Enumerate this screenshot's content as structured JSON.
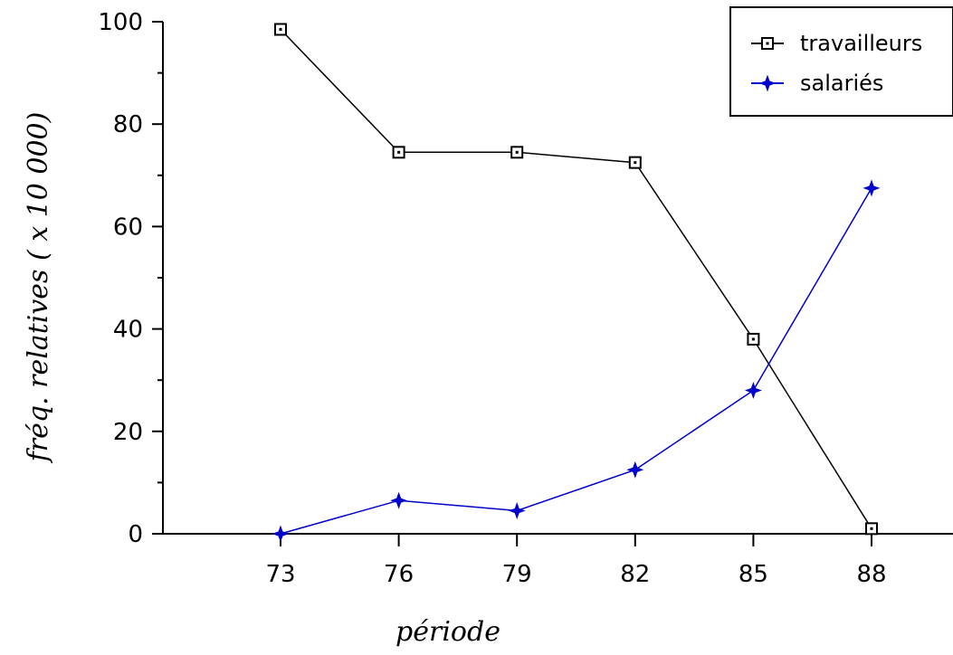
{
  "chart_data": {
    "type": "line",
    "title": "",
    "xlabel": "période",
    "ylabel": "fréq. relatives ( x 10 000)",
    "categories": [
      "73",
      "76",
      "79",
      "82",
      "85",
      "88"
    ],
    "ylim": [
      0,
      100
    ],
    "yticks": [
      0,
      20,
      40,
      60,
      80,
      100
    ],
    "grid": false,
    "legend_position": "top-right",
    "series": [
      {
        "name": "travailleurs",
        "marker": "open-square",
        "color": "#000000",
        "values": [
          98.5,
          74.5,
          74.5,
          72.5,
          38.0,
          1.0
        ]
      },
      {
        "name": "salariés",
        "marker": "star",
        "color": "#0000cc",
        "values": [
          0.0,
          6.5,
          4.5,
          12.5,
          28.0,
          67.5
        ]
      }
    ]
  }
}
